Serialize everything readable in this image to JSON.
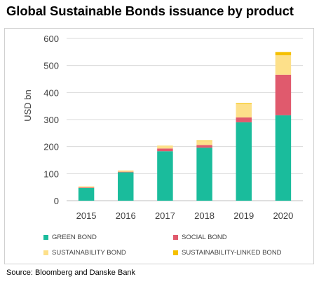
{
  "title": "Global Sustainable Bonds issuance by product",
  "source": "Source: Bloomberg and Danske Bank",
  "chart_data": {
    "type": "bar",
    "stacked": true,
    "categories": [
      "2015",
      "2016",
      "2017",
      "2018",
      "2019",
      "2020"
    ],
    "series": [
      {
        "name": "GREEN BOND",
        "color": "#1abc9c",
        "values": [
          47,
          105,
          183,
          196,
          290,
          316
        ]
      },
      {
        "name": "SOCIAL BOND",
        "color": "#e05a6d",
        "values": [
          2,
          2,
          10,
          10,
          18,
          150
        ]
      },
      {
        "name": "SUSTAINABILITY BOND",
        "color": "#fde08a",
        "values": [
          4,
          5,
          11,
          15,
          50,
          72
        ]
      },
      {
        "name": "SUSTAINABILITY-LINKED BOND",
        "color": "#f5c000",
        "values": [
          0,
          0,
          0,
          2,
          3,
          12
        ]
      }
    ],
    "ylabel": "USD bn",
    "ylim": [
      0,
      600
    ],
    "yticks": [
      "0",
      "100",
      "200",
      "300",
      "400",
      "500",
      "600"
    ],
    "grid": true,
    "legend": "bottom"
  }
}
